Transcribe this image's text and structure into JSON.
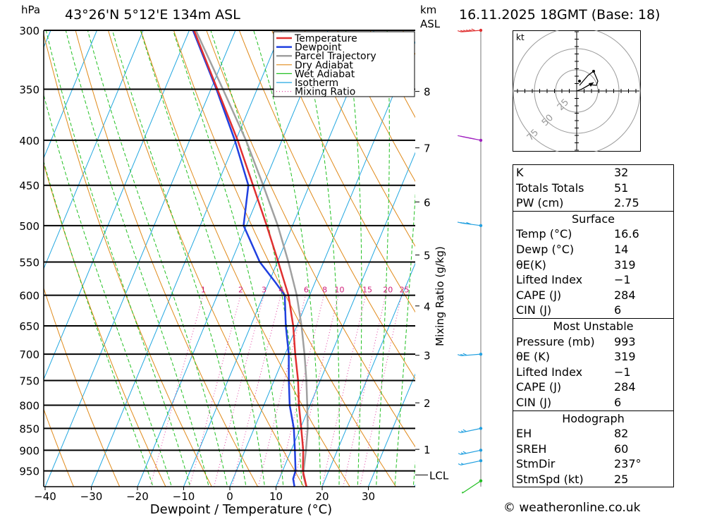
{
  "header": {
    "location": "43°26'N  5°12'E  134m  ASL",
    "datetime": "16.11.2025  18GMT  (Base: 18)",
    "pressure_unit": "hPa",
    "height_unit_km": "km",
    "height_unit_asl": "ASL"
  },
  "chart_data": {
    "type": "skew-t log-p",
    "xlabel": "Dewpoint / Temperature (°C)",
    "ylabel": "hPa",
    "xlim": [
      -40,
      40
    ],
    "pressure_range": [
      300,
      990
    ],
    "x_ticks": [
      "−40",
      "−30",
      "−20",
      "−10",
      "0",
      "10",
      "20",
      "30"
    ],
    "x_tick_values": [
      -40,
      -30,
      -20,
      -10,
      0,
      10,
      20,
      30
    ],
    "pressure_levels": [
      300,
      350,
      400,
      450,
      500,
      550,
      600,
      650,
      700,
      750,
      800,
      850,
      900,
      950
    ],
    "height_ticks_km": [
      1,
      2,
      3,
      4,
      5,
      6,
      7,
      8
    ],
    "height_tick_pressures": [
      898,
      795,
      702,
      617,
      540,
      470,
      408,
      352
    ],
    "lcl_label": "LCL",
    "lcl_pressure": 960,
    "mixing_ratio_label": "Mixing Ratio (g/kg)",
    "mixing_ratio_values": [
      "1",
      "2",
      "3",
      "4",
      "6",
      "8",
      "10",
      "15",
      "20",
      "25"
    ],
    "legend": [
      "Temperature",
      "Dewpoint",
      "Parcel Trajectory",
      "Dry Adiabat",
      "Wet Adiabat",
      "Isotherm",
      "Mixing Ratio"
    ],
    "series": [
      {
        "name": "Temperature",
        "color": "#e03030",
        "points": [
          [
            990,
            16.6
          ],
          [
            950,
            14.4
          ],
          [
            900,
            12.6
          ],
          [
            850,
            10.2
          ],
          [
            800,
            7.6
          ],
          [
            750,
            5.2
          ],
          [
            700,
            2.2
          ],
          [
            650,
            -0.8
          ],
          [
            600,
            -4.6
          ],
          [
            550,
            -9.8
          ],
          [
            500,
            -15.6
          ],
          [
            450,
            -22.2
          ],
          [
            400,
            -29.6
          ],
          [
            350,
            -38.6
          ],
          [
            300,
            -49
          ]
        ]
      },
      {
        "name": "Dewpoint",
        "color": "#2040e0",
        "points": [
          [
            990,
            14
          ],
          [
            970,
            13
          ],
          [
            950,
            12.8
          ],
          [
            900,
            10.8
          ],
          [
            850,
            8.6
          ],
          [
            800,
            5.6
          ],
          [
            750,
            3.2
          ],
          [
            700,
            0.8
          ],
          [
            650,
            -2.4
          ],
          [
            600,
            -5.4
          ],
          [
            580,
            -8.6
          ],
          [
            550,
            -13.8
          ],
          [
            500,
            -20.6
          ],
          [
            450,
            -23.2
          ],
          [
            400,
            -30.2
          ],
          [
            350,
            -38.8
          ],
          [
            300,
            -49.2
          ]
        ]
      },
      {
        "name": "Parcel Trajectory",
        "color": "#a0a0a0",
        "points": [
          [
            990,
            16.6
          ],
          [
            960,
            14.8
          ],
          [
            900,
            13.2
          ],
          [
            850,
            11.6
          ],
          [
            800,
            9.4
          ],
          [
            750,
            7.0
          ],
          [
            700,
            4.2
          ],
          [
            650,
            1.0
          ],
          [
            600,
            -2.8
          ],
          [
            550,
            -7.6
          ],
          [
            500,
            -13.2
          ],
          [
            450,
            -20.0
          ],
          [
            400,
            -27.8
          ],
          [
            350,
            -37.4
          ],
          [
            300,
            -48.6
          ]
        ]
      }
    ],
    "wind_barbs": [
      {
        "pressure": 300,
        "dir": 240,
        "speed_kt": 55
      },
      {
        "pressure": 400,
        "dir": 260,
        "speed_kt": 50
      },
      {
        "pressure": 500,
        "dir": 255,
        "speed_kt": 35
      },
      {
        "pressure": 700,
        "dir": 240,
        "speed_kt": 25
      },
      {
        "pressure": 850,
        "dir": 230,
        "speed_kt": 25
      },
      {
        "pressure": 900,
        "dir": 230,
        "speed_kt": 25
      },
      {
        "pressure": 925,
        "dir": 230,
        "speed_kt": 20
      },
      {
        "pressure": 975,
        "dir": 200,
        "speed_kt": 10
      }
    ],
    "hodograph": {
      "unit": "kt",
      "ring_labels": [
        "25",
        "50",
        "75"
      ],
      "trace": [
        [
          0,
          0
        ],
        [
          8,
          3
        ],
        [
          18,
          9
        ],
        [
          28,
          8
        ],
        [
          30,
          14
        ],
        [
          24,
          28
        ],
        [
          16,
          22
        ],
        [
          4,
          8
        ]
      ]
    }
  },
  "indices": {
    "general": [
      {
        "label": "K",
        "value": "32"
      },
      {
        "label": "Totals Totals",
        "value": "51"
      },
      {
        "label": "PW (cm)",
        "value": "2.75"
      }
    ],
    "surface": {
      "title": "Surface",
      "rows": [
        {
          "label": "Temp (°C)",
          "value": "16.6"
        },
        {
          "label": "Dewp (°C)",
          "value": "14"
        },
        {
          "label": "θE(K)",
          "value": "319"
        },
        {
          "label": "Lifted Index",
          "value": "−1"
        },
        {
          "label": "CAPE (J)",
          "value": "284"
        },
        {
          "label": "CIN (J)",
          "value": "6"
        }
      ]
    },
    "most_unstable": {
      "title": "Most Unstable",
      "rows": [
        {
          "label": "Pressure (mb)",
          "value": "993"
        },
        {
          "label": "θE (K)",
          "value": "319"
        },
        {
          "label": "Lifted Index",
          "value": "−1"
        },
        {
          "label": "CAPE (J)",
          "value": "284"
        },
        {
          "label": "CIN (J)",
          "value": "6"
        }
      ]
    },
    "hodograph": {
      "title": "Hodograph",
      "rows": [
        {
          "label": "EH",
          "value": "82"
        },
        {
          "label": "SREH",
          "value": "60"
        },
        {
          "label": "StmDir",
          "value": "237°"
        },
        {
          "label": "StmSpd (kt)",
          "value": "25"
        }
      ]
    }
  },
  "footer": {
    "copyright": "© weatheronline.co.uk"
  }
}
